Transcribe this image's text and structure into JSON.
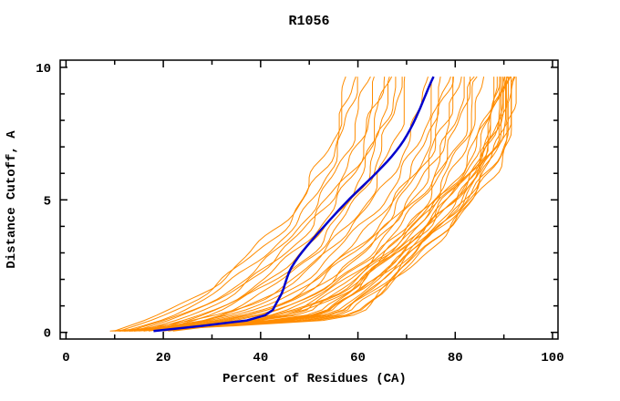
{
  "figure": {
    "background": "#ffffff"
  },
  "chart_data": {
    "type": "line",
    "title": "R1056",
    "xlabel": "Percent of Residues (CA)",
    "ylabel": "Distance Cutoff, A",
    "xlim": [
      0,
      100
    ],
    "ylim": [
      0,
      10
    ],
    "grid": false,
    "legend": "none",
    "frame": "box-with-mirrored-ticks",
    "x_major_ticks": [
      0,
      20,
      40,
      60,
      80,
      100
    ],
    "x_major_tick_labels": [
      "0",
      "20",
      "40",
      "60",
      "80",
      "100"
    ],
    "x_minor_ticks": [
      10,
      30,
      50,
      70,
      90
    ],
    "y_major_ticks": [
      0,
      5,
      10
    ],
    "y_major_tick_labels": [
      "0",
      "5",
      "10"
    ],
    "y_minor_ticks": [
      1,
      2,
      3,
      4,
      6,
      7,
      8,
      9
    ],
    "colors": {
      "models": "#ff8c00",
      "reference": "#0000cd",
      "axis": "#000000",
      "background": "#ffffff"
    },
    "curve_cutoff_range": [
      0.05,
      9.75
    ],
    "anchor_cutoffs": [
      0.05,
      0.5,
      1.2,
      2.5,
      4.5,
      7,
      9.75
    ],
    "reference_series": {
      "name": "reference-model",
      "percents": [
        18,
        38.5,
        43.5,
        46.5,
        55.5,
        68.5,
        75.8
      ]
    },
    "model_series_percents": [
      [
        10,
        44,
        55,
        64,
        76,
        86,
        89
      ],
      [
        11,
        46,
        57,
        66,
        77,
        87,
        90
      ],
      [
        12,
        48,
        58,
        67,
        78,
        87.5,
        90.5
      ],
      [
        9.5,
        41,
        52,
        62,
        74,
        84.5,
        88.5
      ],
      [
        13,
        52,
        61,
        69,
        80,
        89,
        91.5
      ],
      [
        10.5,
        45,
        56,
        65,
        76.5,
        86.2,
        89.5
      ],
      [
        11.5,
        47,
        57.5,
        66.5,
        77.5,
        87,
        90.2
      ],
      [
        12.5,
        50,
        59,
        68,
        79,
        88,
        91
      ],
      [
        10,
        42,
        53,
        63,
        75,
        85,
        88.8
      ],
      [
        11,
        46.5,
        57,
        66,
        77,
        86.8,
        90
      ],
      [
        13.5,
        53,
        62,
        70,
        80.5,
        89.5,
        91.8
      ],
      [
        9,
        40,
        51,
        61,
        73.5,
        84,
        88
      ],
      [
        12,
        49,
        59.5,
        68.5,
        79,
        88.2,
        90.8
      ],
      [
        10.8,
        44.5,
        55.5,
        64.5,
        76,
        86,
        89.2
      ],
      [
        11.8,
        51,
        60,
        68,
        79.5,
        88.5,
        91.2
      ],
      [
        13,
        54,
        62.5,
        70.5,
        81,
        90,
        91.9
      ],
      [
        14,
        55,
        63,
        71,
        81.5,
        90.5,
        92
      ],
      [
        14,
        30,
        42,
        52,
        63,
        72,
        76
      ],
      [
        16,
        33,
        46,
        56,
        67,
        75,
        79
      ],
      [
        18,
        36,
        49,
        59,
        70,
        78,
        82
      ],
      [
        20,
        39,
        52,
        62,
        72,
        80,
        84
      ],
      [
        13,
        27,
        40,
        50,
        61,
        70,
        74
      ],
      [
        15,
        31,
        44,
        54,
        65,
        73.5,
        77.5
      ],
      [
        17,
        35,
        48,
        58,
        68.5,
        77,
        81
      ],
      [
        19,
        38,
        50,
        60,
        71,
        79,
        83
      ],
      [
        21,
        40,
        53,
        63,
        73.5,
        81,
        85
      ],
      [
        16,
        32,
        45,
        55,
        66,
        74,
        78
      ],
      [
        18,
        34,
        47,
        57,
        69,
        76,
        80
      ],
      [
        22,
        41,
        54,
        64,
        74,
        82,
        86
      ],
      [
        12,
        20,
        28,
        38,
        49,
        56,
        60
      ],
      [
        14,
        22,
        31,
        41,
        52,
        60,
        64
      ],
      [
        16,
        25,
        34,
        44,
        54,
        62,
        66
      ],
      [
        18,
        27,
        36,
        47,
        57,
        64,
        68
      ],
      [
        10,
        17,
        25,
        35,
        46,
        54,
        58
      ],
      [
        15,
        23,
        32,
        42,
        52,
        61,
        65
      ],
      [
        17,
        26,
        35,
        45,
        56,
        63,
        67
      ],
      [
        13,
        21,
        30,
        40,
        50,
        58,
        62
      ],
      [
        19,
        29,
        38,
        48,
        58,
        65,
        69
      ],
      [
        20,
        30,
        40,
        50,
        60,
        67,
        70.5
      ],
      [
        11,
        18,
        26,
        36,
        47,
        55,
        59
      ]
    ]
  }
}
